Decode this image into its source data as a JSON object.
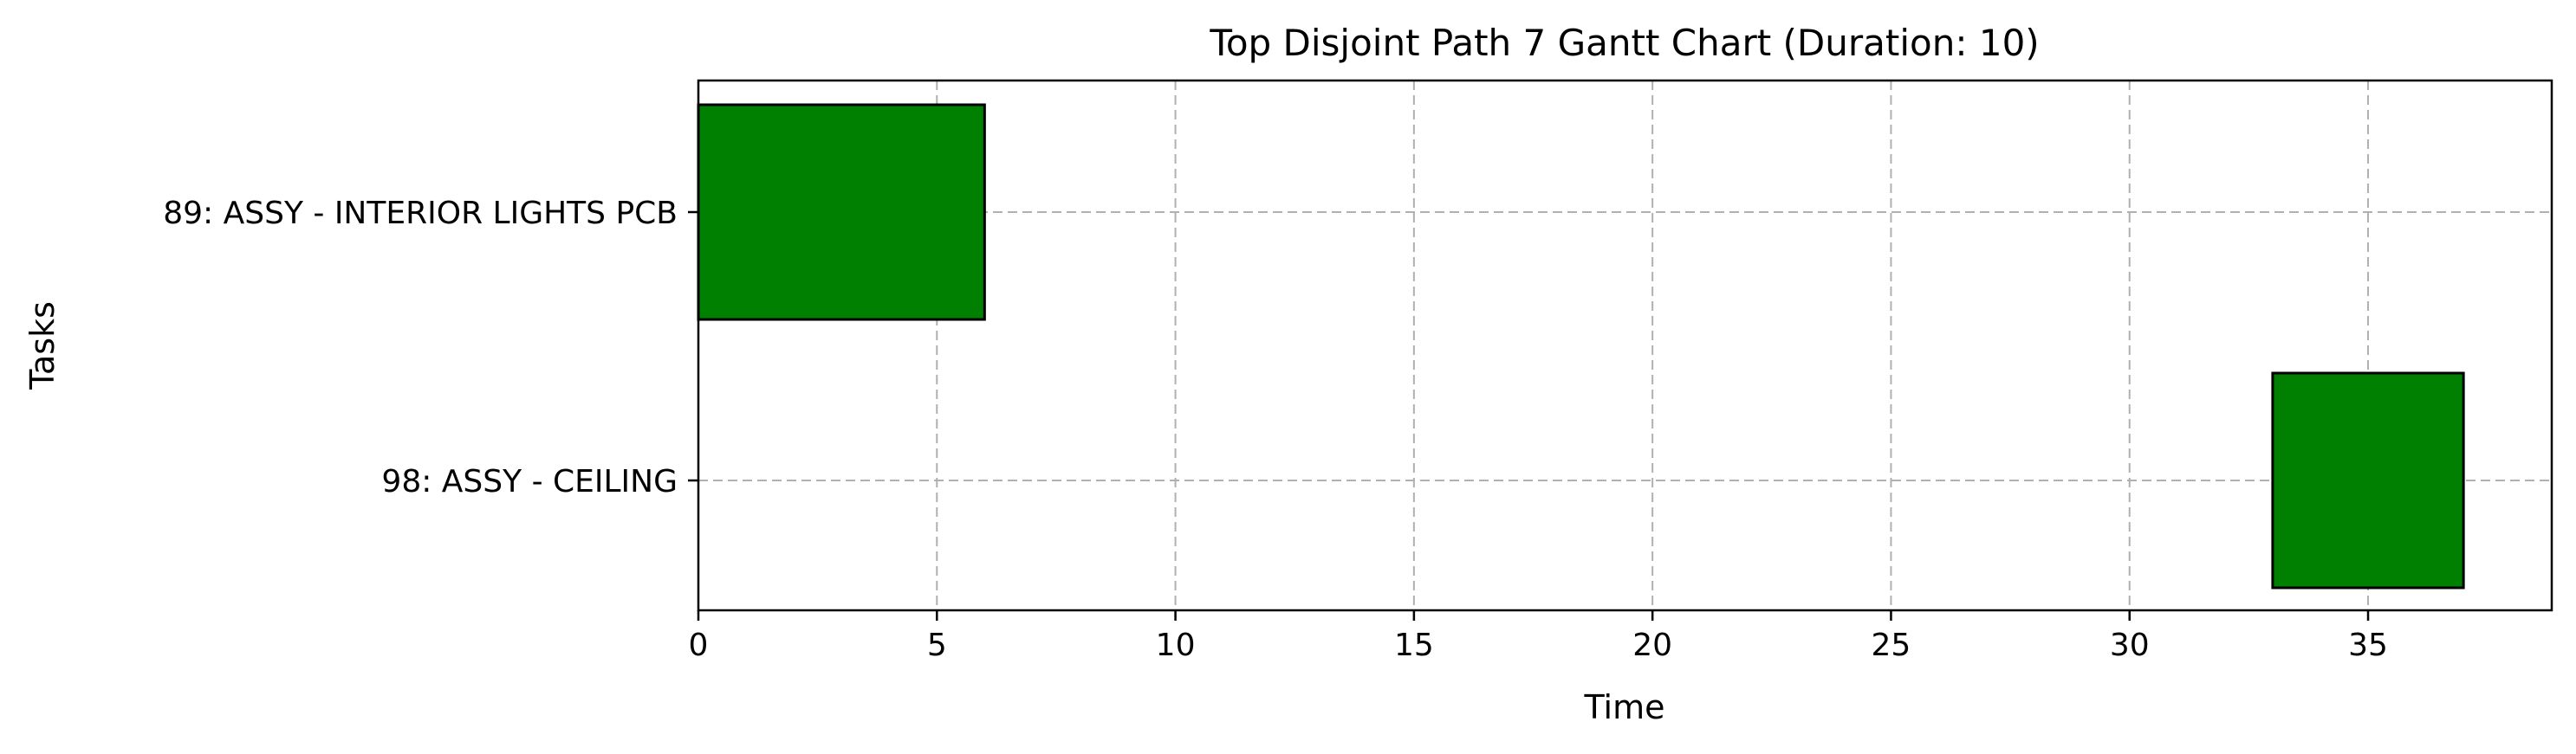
{
  "chart_data": {
    "type": "gantt",
    "title": "Top Disjoint Path 7 Gantt Chart (Duration: 10)",
    "xlabel": "Time",
    "ylabel": "Tasks",
    "xlim": [
      0,
      38.85
    ],
    "xticks": [
      0,
      5,
      10,
      15,
      20,
      25,
      30,
      35
    ],
    "grid": true,
    "bar_color": "#008000",
    "bar_edge_color": "#000000",
    "tasks": [
      {
        "label": "89: ASSY - INTERIOR LIGHTS PCB",
        "start": 0,
        "end": 6
      },
      {
        "label": "98: ASSY - CEILING",
        "start": 33,
        "end": 37
      }
    ]
  }
}
